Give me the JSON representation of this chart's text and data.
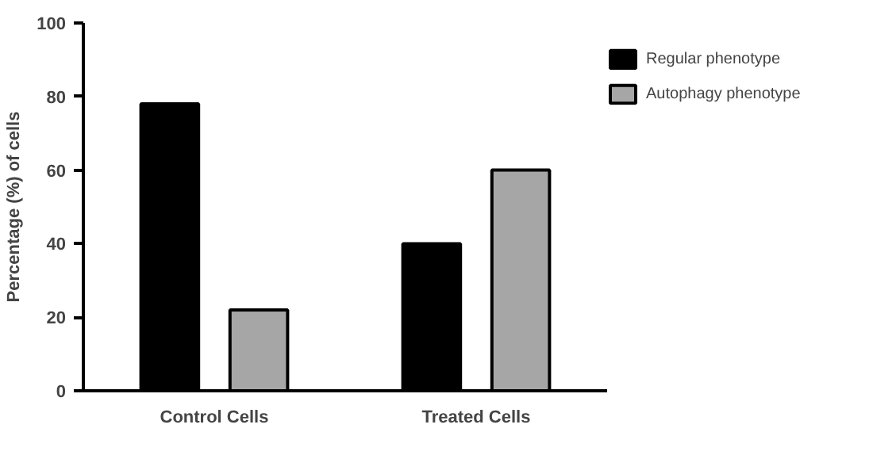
{
  "chart_data": {
    "type": "bar",
    "ylabel": "Percentage (%) of cells",
    "categories": [
      "Control Cells",
      "Treated Cells"
    ],
    "series": [
      {
        "name": "Regular phenotype",
        "color": "#000000",
        "values": [
          78,
          40
        ]
      },
      {
        "name": "Autophagy phenotype",
        "color": "#a6a6a6",
        "values": [
          22,
          60
        ]
      }
    ],
    "ylim": [
      0,
      100
    ],
    "yticks": [
      0,
      20,
      40,
      60,
      80,
      100
    ],
    "grid": false,
    "legend": "top right"
  }
}
